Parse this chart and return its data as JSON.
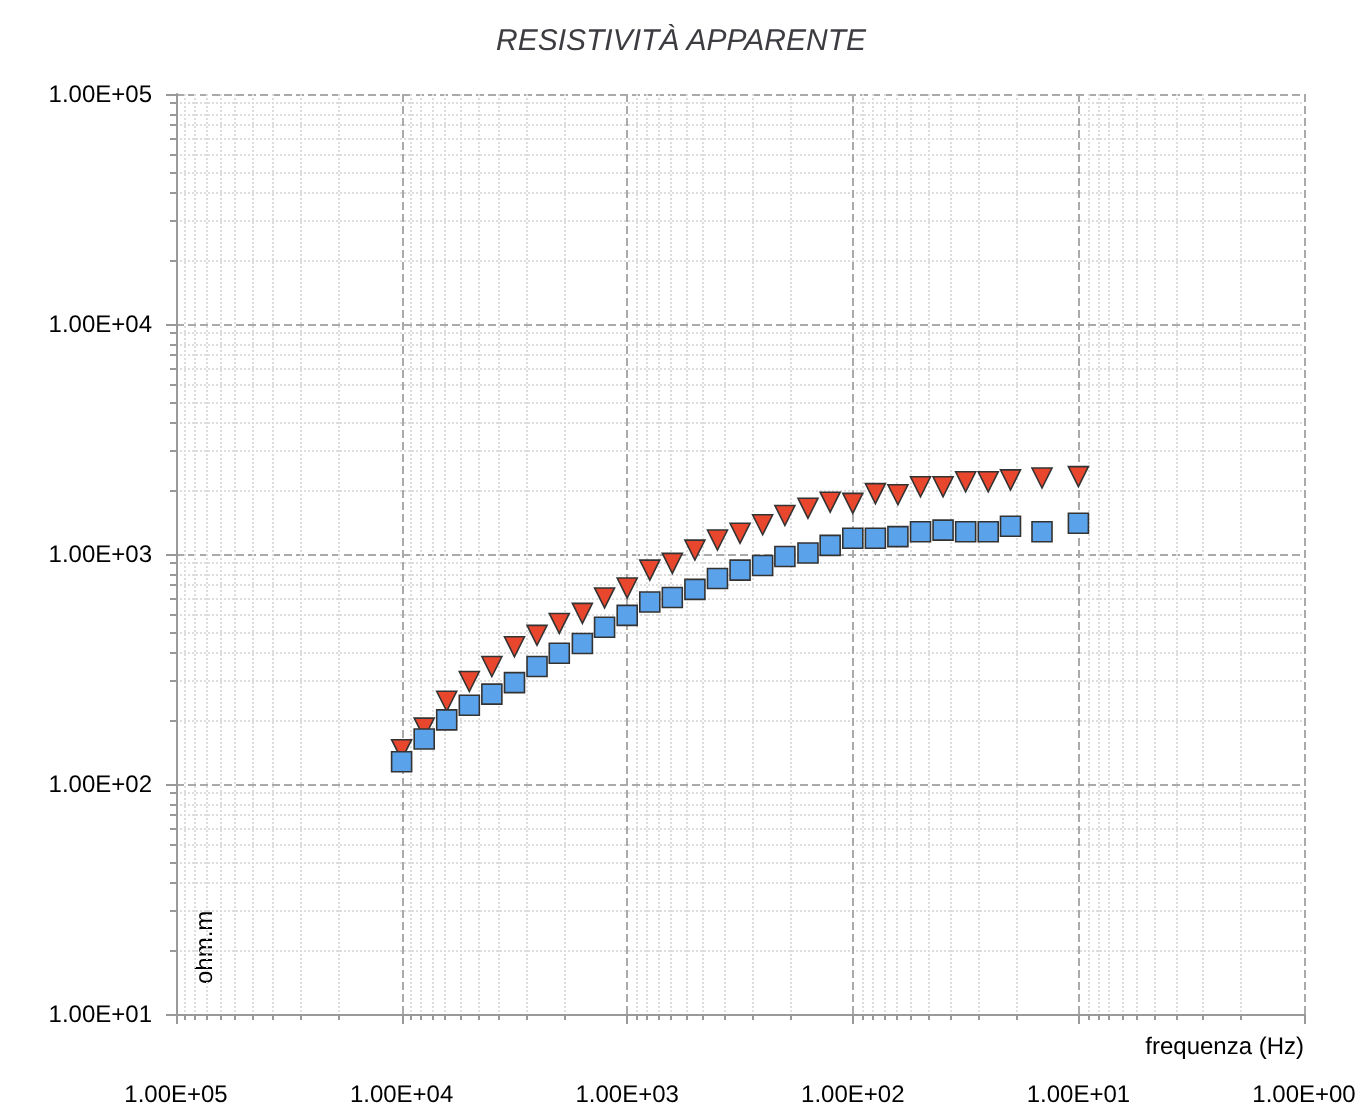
{
  "chart_data": {
    "type": "scatter",
    "title": "RESISTIVITÀ APPARENTE",
    "xlabel": "frequenza (Hz)",
    "ylabel": "ohm.m",
    "log": "xy",
    "grid": true,
    "xlim": [
      100000,
      1
    ],
    "ylim": [
      10,
      100000
    ],
    "xticks": [
      {
        "value": 100000,
        "label": "1.00E+05"
      },
      {
        "value": 10000,
        "label": "1.00E+04"
      },
      {
        "value": 1000,
        "label": "1.00E+03"
      },
      {
        "value": 100,
        "label": "1.00E+02"
      },
      {
        "value": 10,
        "label": "1.00E+01"
      },
      {
        "value": 1,
        "label": "1.00E+00"
      }
    ],
    "yticks": [
      {
        "value": 10,
        "label": "1.00E+01"
      },
      {
        "value": 100,
        "label": "1.00E+02"
      },
      {
        "value": 1000,
        "label": "1.00E+03"
      },
      {
        "value": 10000,
        "label": "1.00E+04"
      },
      {
        "value": 100000,
        "label": "1.00E+05"
      }
    ],
    "x": [
      10000,
      7940,
      6310,
      5010,
      3980,
      3160,
      2510,
      2000,
      1580,
      1260,
      1000,
      794,
      631,
      501,
      398,
      316,
      251,
      200,
      158,
      126,
      100,
      79.4,
      63.1,
      50.1,
      39.8,
      31.6,
      25.1,
      20,
      14.5,
      10
    ],
    "series": [
      {
        "color": "#e8472e",
        "marker": "triangle",
        "values": [
          141,
          175,
          229,
          279,
          324,
          395,
          443,
          499,
          552,
          644,
          711,
          851,
          910,
          1040,
          1150,
          1230,
          1340,
          1470,
          1580,
          1680,
          1660,
          1830,
          1810,
          1960,
          1960,
          2060,
          2060,
          2100,
          2140,
          2170
        ]
      },
      {
        "color": "#5aa2ea",
        "marker": "square",
        "values": [
          125,
          157,
          190,
          220,
          246,
          276,
          324,
          370,
          408,
          480,
          541,
          618,
          647,
          702,
          782,
          851,
          891,
          975,
          1010,
          1090,
          1170,
          1170,
          1190,
          1250,
          1270,
          1250,
          1250,
          1320,
          1250,
          1360
        ]
      }
    ]
  }
}
